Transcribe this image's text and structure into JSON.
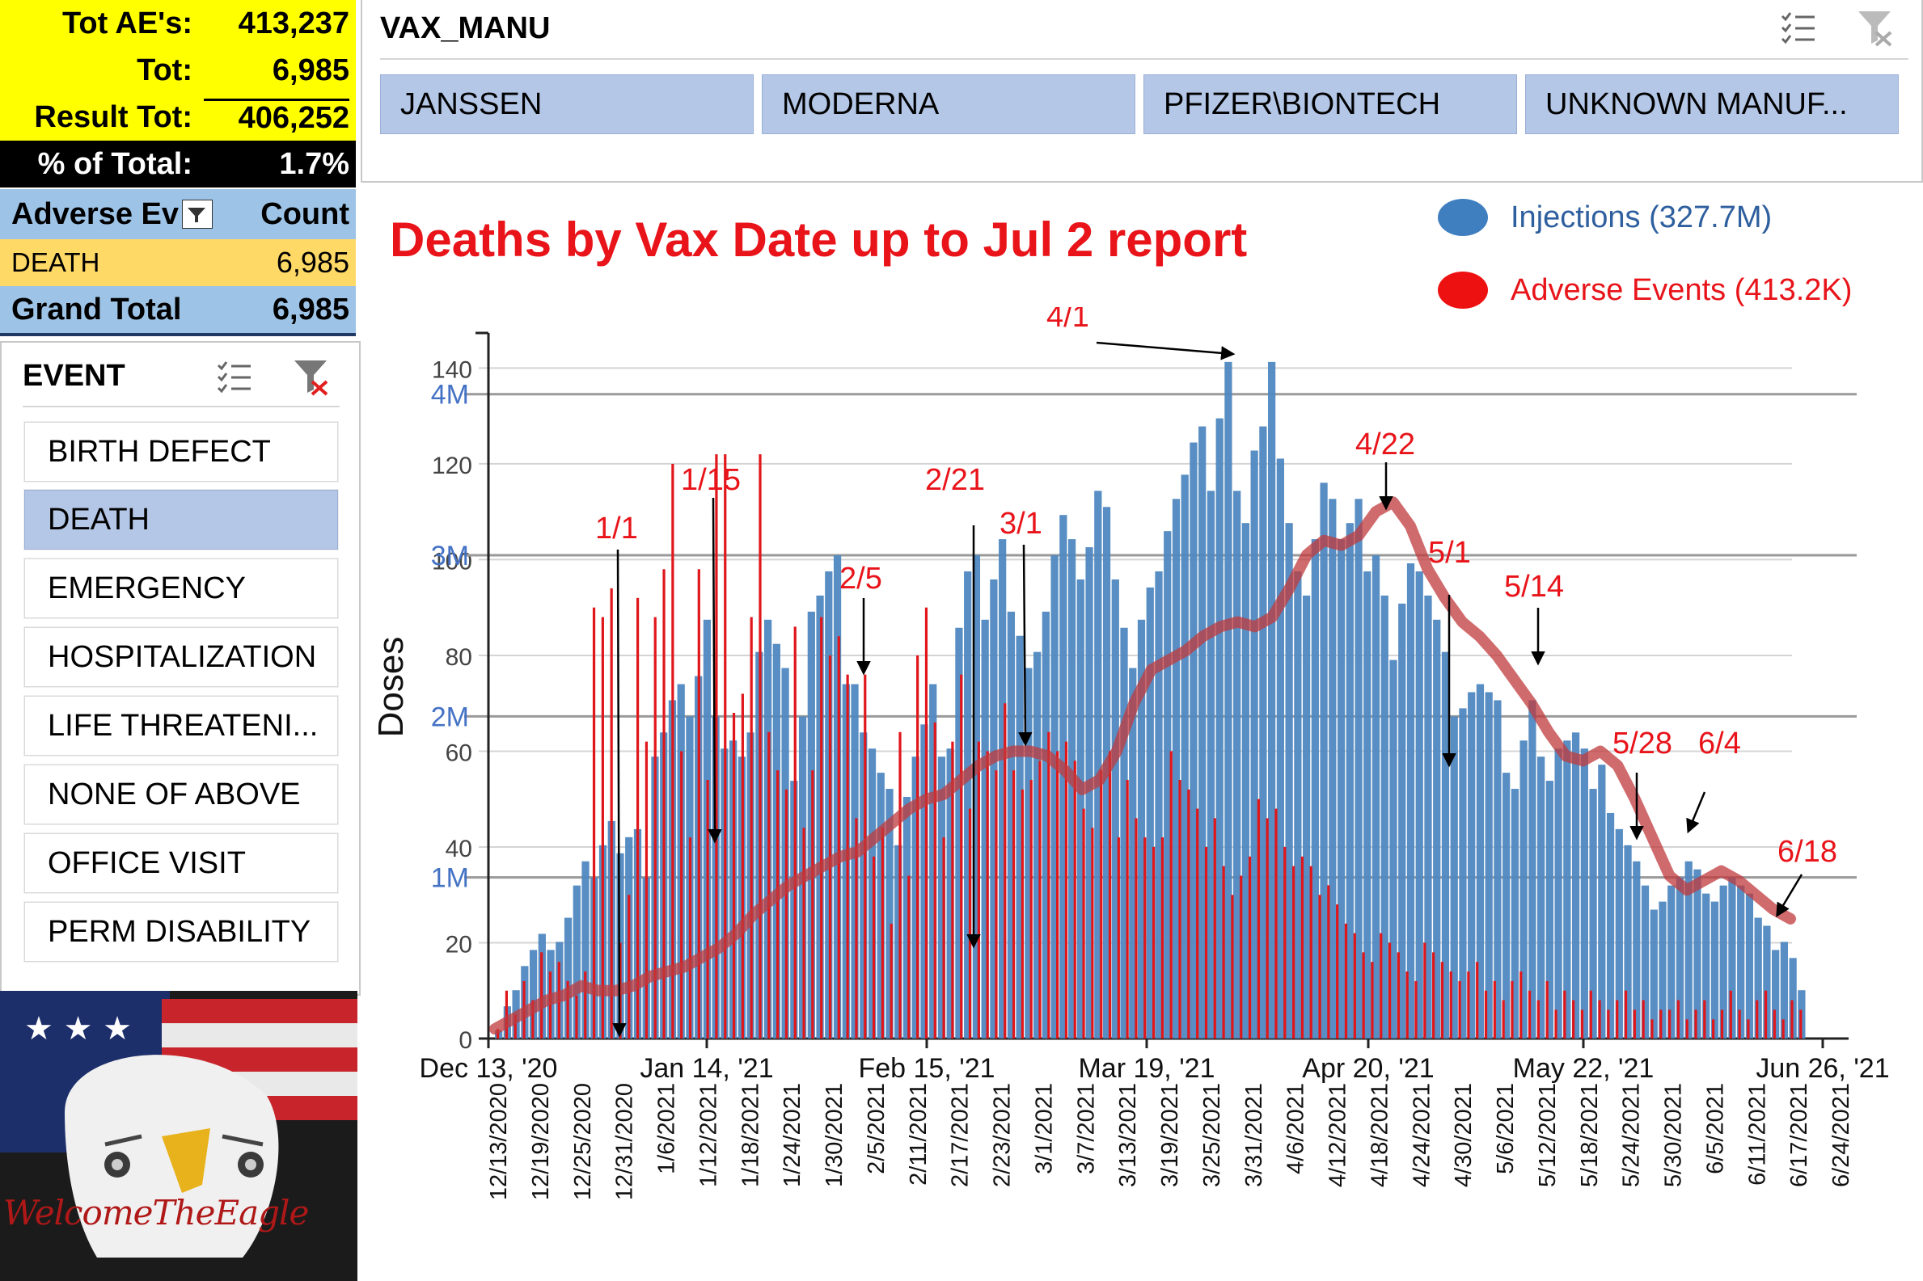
{
  "summary": {
    "rows": [
      {
        "label": "Tot AE's:",
        "value": "413,237"
      },
      {
        "label": "Tot:",
        "value": "6,985"
      },
      {
        "label": "Result Tot:",
        "value": "406,252"
      },
      {
        "label": "% of Total:",
        "value": "1.7%"
      }
    ]
  },
  "pivot": {
    "col1": "Adverse Ev",
    "col2": "Count",
    "rows": [
      {
        "label": "DEATH",
        "value": "6,985"
      }
    ],
    "total_label": "Grand Total",
    "total_value": "6,985"
  },
  "event_slicer": {
    "title": "EVENT",
    "items": [
      {
        "label": "BIRTH DEFECT",
        "selected": false
      },
      {
        "label": "DEATH",
        "selected": true
      },
      {
        "label": "EMERGENCY",
        "selected": false
      },
      {
        "label": "HOSPITALIZATION",
        "selected": false
      },
      {
        "label": "LIFE THREATENI...",
        "selected": false
      },
      {
        "label": "NONE OF ABOVE",
        "selected": false
      },
      {
        "label": "OFFICE VISIT",
        "selected": false
      },
      {
        "label": "PERM DISABILITY",
        "selected": false
      }
    ]
  },
  "manu_slicer": {
    "title": "VAX_MANU",
    "items": [
      "JANSSEN",
      "MODERNA",
      "PFIZER\\BIONTECH",
      "UNKNOWN MANUF..."
    ]
  },
  "image": {
    "caption": "WelcomeTheEagle"
  },
  "chart": {
    "title": "Deaths by Vax Date up to Jul 2 report",
    "legend": [
      {
        "label": "Injections (327.7M)",
        "color": "#3f7fbf"
      },
      {
        "label": "Adverse Events (413.2K)",
        "color": "#ee1111"
      }
    ]
  },
  "colors": {
    "yellow": "#ffff00",
    "pivot_blue": "#9dc3e6",
    "slicer_sel": "#b4c7e7",
    "title_red": "#e8141a"
  },
  "chart_data": {
    "type": "bar",
    "title": "Deaths by Vax Date up to Jul 2 report",
    "ylabel": "Doses",
    "deaths_axis": {
      "ticks": [
        0,
        20,
        40,
        60,
        80,
        100,
        120,
        140
      ],
      "ylim": [
        0,
        148
      ]
    },
    "injections_axis": {
      "ticks": [
        "1M",
        "2M",
        "3M",
        "4M"
      ],
      "ylim_millions": [
        0,
        4.4
      ]
    },
    "x_top_labels": [
      "Dec 13, '20",
      "Jan 14, '21",
      "Feb 15, '21",
      "Mar 19, '21",
      "Apr 20, '21",
      "May 22, '21",
      "Jun 26, '21"
    ],
    "x_date_labels": [
      "12/13/2020",
      "12/19/2020",
      "12/25/2020",
      "12/31/2020",
      "1/6/2021",
      "1/12/2021",
      "1/18/2021",
      "1/24/2021",
      "1/30/2021",
      "2/5/2021",
      "2/11/2021",
      "2/17/2021",
      "2/23/2021",
      "3/1/2021",
      "3/7/2021",
      "3/13/2021",
      "3/19/2021",
      "3/25/2021",
      "3/31/2021",
      "4/6/2021",
      "4/12/2021",
      "4/18/2021",
      "4/24/2021",
      "4/30/2021",
      "5/6/2021",
      "5/12/2021",
      "5/18/2021",
      "5/24/2021",
      "5/30/2021",
      "6/5/2021",
      "6/11/2021",
      "6/17/2021",
      "6/24/2021"
    ],
    "series": [
      {
        "name": "Injections (millions/day, approx)",
        "values": [
          0.05,
          0.2,
          0.3,
          0.45,
          0.55,
          0.65,
          0.55,
          0.6,
          0.75,
          0.95,
          1.1,
          1.0,
          1.2,
          1.35,
          1.15,
          1.25,
          1.3,
          1.0,
          1.75,
          1.9,
          2.1,
          2.2,
          2.0,
          2.25,
          2.6,
          2.0,
          1.8,
          1.85,
          1.75,
          1.9,
          2.4,
          2.6,
          2.45,
          2.3,
          1.6,
          2.0,
          2.65,
          2.75,
          2.9,
          3.0,
          2.2,
          2.2,
          1.9,
          1.8,
          1.65,
          1.55,
          1.2,
          1.5,
          1.75,
          1.95,
          2.2,
          1.75,
          1.8,
          2.55,
          2.9,
          3.0,
          2.6,
          2.85,
          3.1,
          2.65,
          2.5,
          2.3,
          2.4,
          2.65,
          3.0,
          3.25,
          3.1,
          2.85,
          3.05,
          3.4,
          3.3,
          2.85,
          2.55,
          2.3,
          2.6,
          2.8,
          2.9,
          3.15,
          3.35,
          3.5,
          3.7,
          3.8,
          3.4,
          3.85,
          4.2,
          3.4,
          3.2,
          3.65,
          3.8,
          4.2,
          3.6,
          3.2,
          2.9,
          2.75,
          3.1,
          3.45,
          3.35,
          3.1,
          3.2,
          3.35,
          2.9,
          3.0,
          2.75,
          2.35,
          2.7,
          2.95,
          2.9,
          2.75,
          2.6,
          2.4,
          2.0,
          2.05,
          2.15,
          2.2,
          2.15,
          2.1,
          1.65,
          1.55,
          1.85,
          2.1,
          1.75,
          1.6,
          1.8,
          1.85,
          1.9,
          1.8,
          1.55,
          1.7,
          1.4,
          1.3,
          1.2,
          1.1,
          0.95,
          0.8,
          0.85,
          0.95,
          1.0,
          1.1,
          1.05,
          0.9,
          0.85,
          0.95,
          1.0,
          0.95,
          0.9,
          0.75,
          0.7,
          0.55,
          0.6,
          0.5,
          0.3
        ]
      },
      {
        "name": "Deaths (by vax date, approx)",
        "values": [
          2,
          10,
          5,
          12,
          8,
          18,
          14,
          16,
          12,
          9,
          14,
          90,
          88,
          94,
          20,
          30,
          92,
          62,
          88,
          98,
          120,
          60,
          42,
          98,
          54,
          122,
          122,
          68,
          72,
          88,
          122,
          64,
          56,
          52,
          86,
          44,
          56,
          88,
          80,
          84,
          76,
          46,
          76,
          38,
          44,
          24,
          64,
          34,
          80,
          90,
          66,
          42,
          62,
          76,
          48,
          62,
          60,
          56,
          70,
          56,
          52,
          54,
          58,
          64,
          60,
          62,
          58,
          48,
          44,
          56,
          60,
          42,
          54,
          46,
          42,
          40,
          42,
          60,
          54,
          52,
          48,
          40,
          46,
          36,
          30,
          34,
          38,
          50,
          46,
          48,
          40,
          36,
          38,
          36,
          30,
          32,
          28,
          24,
          22,
          18,
          16,
          22,
          20,
          18,
          14,
          12,
          20,
          18,
          16,
          14,
          12,
          14,
          16,
          10,
          12,
          8,
          12,
          14,
          10,
          8,
          12,
          6,
          10,
          8,
          6,
          10,
          8,
          6,
          8,
          10,
          6,
          8,
          4,
          6,
          6,
          8,
          4,
          6,
          8,
          4,
          6,
          10,
          6,
          4,
          8,
          10,
          6,
          4,
          8,
          6
        ]
      },
      {
        "name": "Deaths trend (moving avg)",
        "values": [
          2,
          4,
          6,
          8,
          9,
          11,
          10,
          10,
          11,
          13,
          14,
          15,
          17,
          19,
          22,
          26,
          29,
          32,
          34,
          36,
          38,
          39,
          42,
          45,
          48,
          50,
          51,
          54,
          57,
          59,
          60,
          60,
          59,
          56,
          52,
          54,
          60,
          70,
          77,
          79,
          81,
          84,
          86,
          87,
          86,
          88,
          94,
          101,
          104,
          103,
          105,
          110,
          112,
          107,
          98,
          92,
          87,
          84,
          80,
          75,
          70,
          64,
          59,
          58,
          60,
          57,
          50,
          42,
          34,
          31,
          33,
          35,
          33,
          30,
          27,
          25
        ]
      }
    ],
    "annotations": [
      "4/1",
      "4/22",
      "1/15",
      "2/21",
      "1/1",
      "3/1",
      "2/5",
      "5/1",
      "5/14",
      "5/28",
      "6/4",
      "6/18"
    ]
  }
}
